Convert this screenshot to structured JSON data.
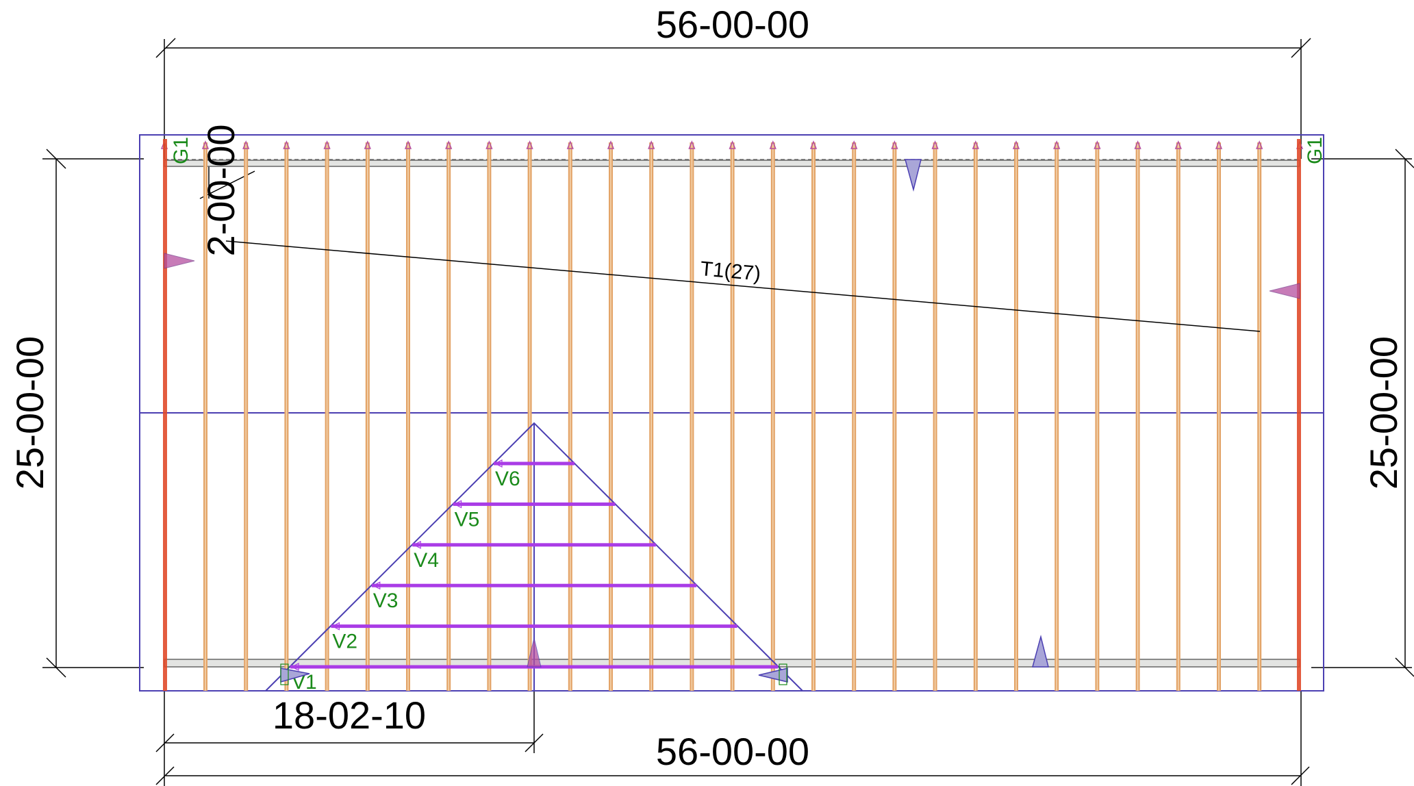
{
  "colors": {
    "outline": "#4b3fb2",
    "truss": "#e3a468",
    "truss_core": "#f6d8b4",
    "end_member": "#e04a2a",
    "valley_truss": "#a93ce6",
    "tag": "#1a8a1a",
    "dimension": "#000000",
    "bearing_fill": "#a9a6d8",
    "arrow_fill": "#b54fa0",
    "beam_fill": "#e3e4e2"
  },
  "dimensions": {
    "top_overall": "56-00-00",
    "bottom_overall": "56-00-00",
    "left_height": "25-00-00",
    "right_height": "25-00-00",
    "overhang": "2-00-00",
    "valley_offset": "18-02-10"
  },
  "labels": {
    "girder_left": "G1",
    "girder_right": "G1",
    "truss_run": "T1",
    "truss_count": "(27)"
  },
  "valley_trusses": [
    {
      "label": "V1"
    },
    {
      "label": "V2"
    },
    {
      "label": "V3"
    },
    {
      "label": "V4"
    },
    {
      "label": "V5"
    },
    {
      "label": "V6"
    }
  ]
}
